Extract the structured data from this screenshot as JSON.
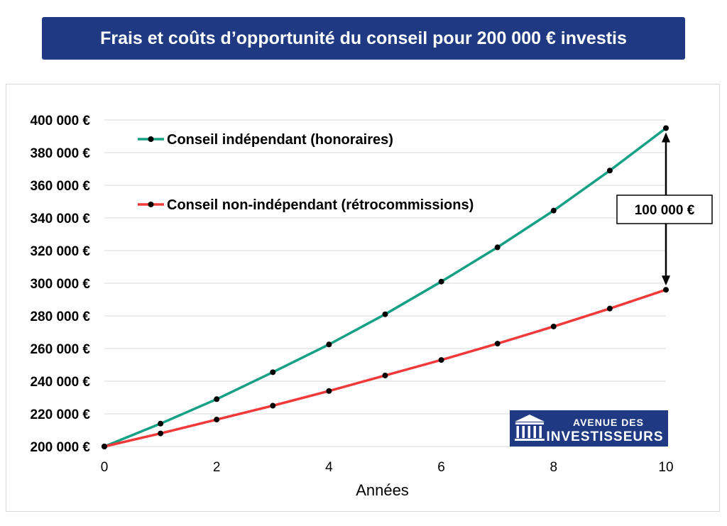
{
  "title": "Frais et coûts d’opportunité du conseil pour 200 000 € investis",
  "colors": {
    "banner": "#1f3a82",
    "series_independent": "#16a084",
    "series_nonindependent": "#f03a3a",
    "logo_bg": "#1f3a82"
  },
  "logo": {
    "line1": "AVENUE DES",
    "line2": "INVESTISSEURS",
    "icon": "bank-columns-icon"
  },
  "annotation": {
    "label": "100 000  €"
  },
  "chart_data": {
    "type": "line",
    "title": "Frais et coûts d’opportunité du conseil pour 200 000 € investis",
    "xlabel": "Années",
    "ylabel": "",
    "xlim": [
      0,
      10
    ],
    "ylim": [
      200000,
      400000
    ],
    "x_ticks": [
      0,
      2,
      4,
      6,
      8,
      10
    ],
    "x_tick_labels": [
      "0",
      "2",
      "4",
      "6",
      "8",
      "10"
    ],
    "y_ticks": [
      200000,
      220000,
      240000,
      260000,
      280000,
      300000,
      320000,
      340000,
      360000,
      380000,
      400000
    ],
    "y_tick_labels": [
      "200 000  €",
      "220 000  €",
      "240 000  €",
      "260 000  €",
      "280 000  €",
      "300 000  €",
      "320 000  €",
      "340 000  €",
      "360 000  €",
      "380 000  €",
      "400 000  €"
    ],
    "grid": true,
    "legend": "top-left",
    "x": [
      0,
      1,
      2,
      3,
      4,
      5,
      6,
      7,
      8,
      9,
      10
    ],
    "series": [
      {
        "name": "Conseil indépendant (honoraires)",
        "values": [
          200000,
          214000,
          229000,
          245500,
          262500,
          281000,
          301000,
          322000,
          344500,
          369000,
          395000
        ]
      },
      {
        "name": "Conseil non-indépendant (rétrocommissions)",
        "values": [
          200000,
          208000,
          216500,
          225000,
          234000,
          243500,
          253000,
          263000,
          273500,
          284500,
          296000
        ]
      }
    ]
  }
}
